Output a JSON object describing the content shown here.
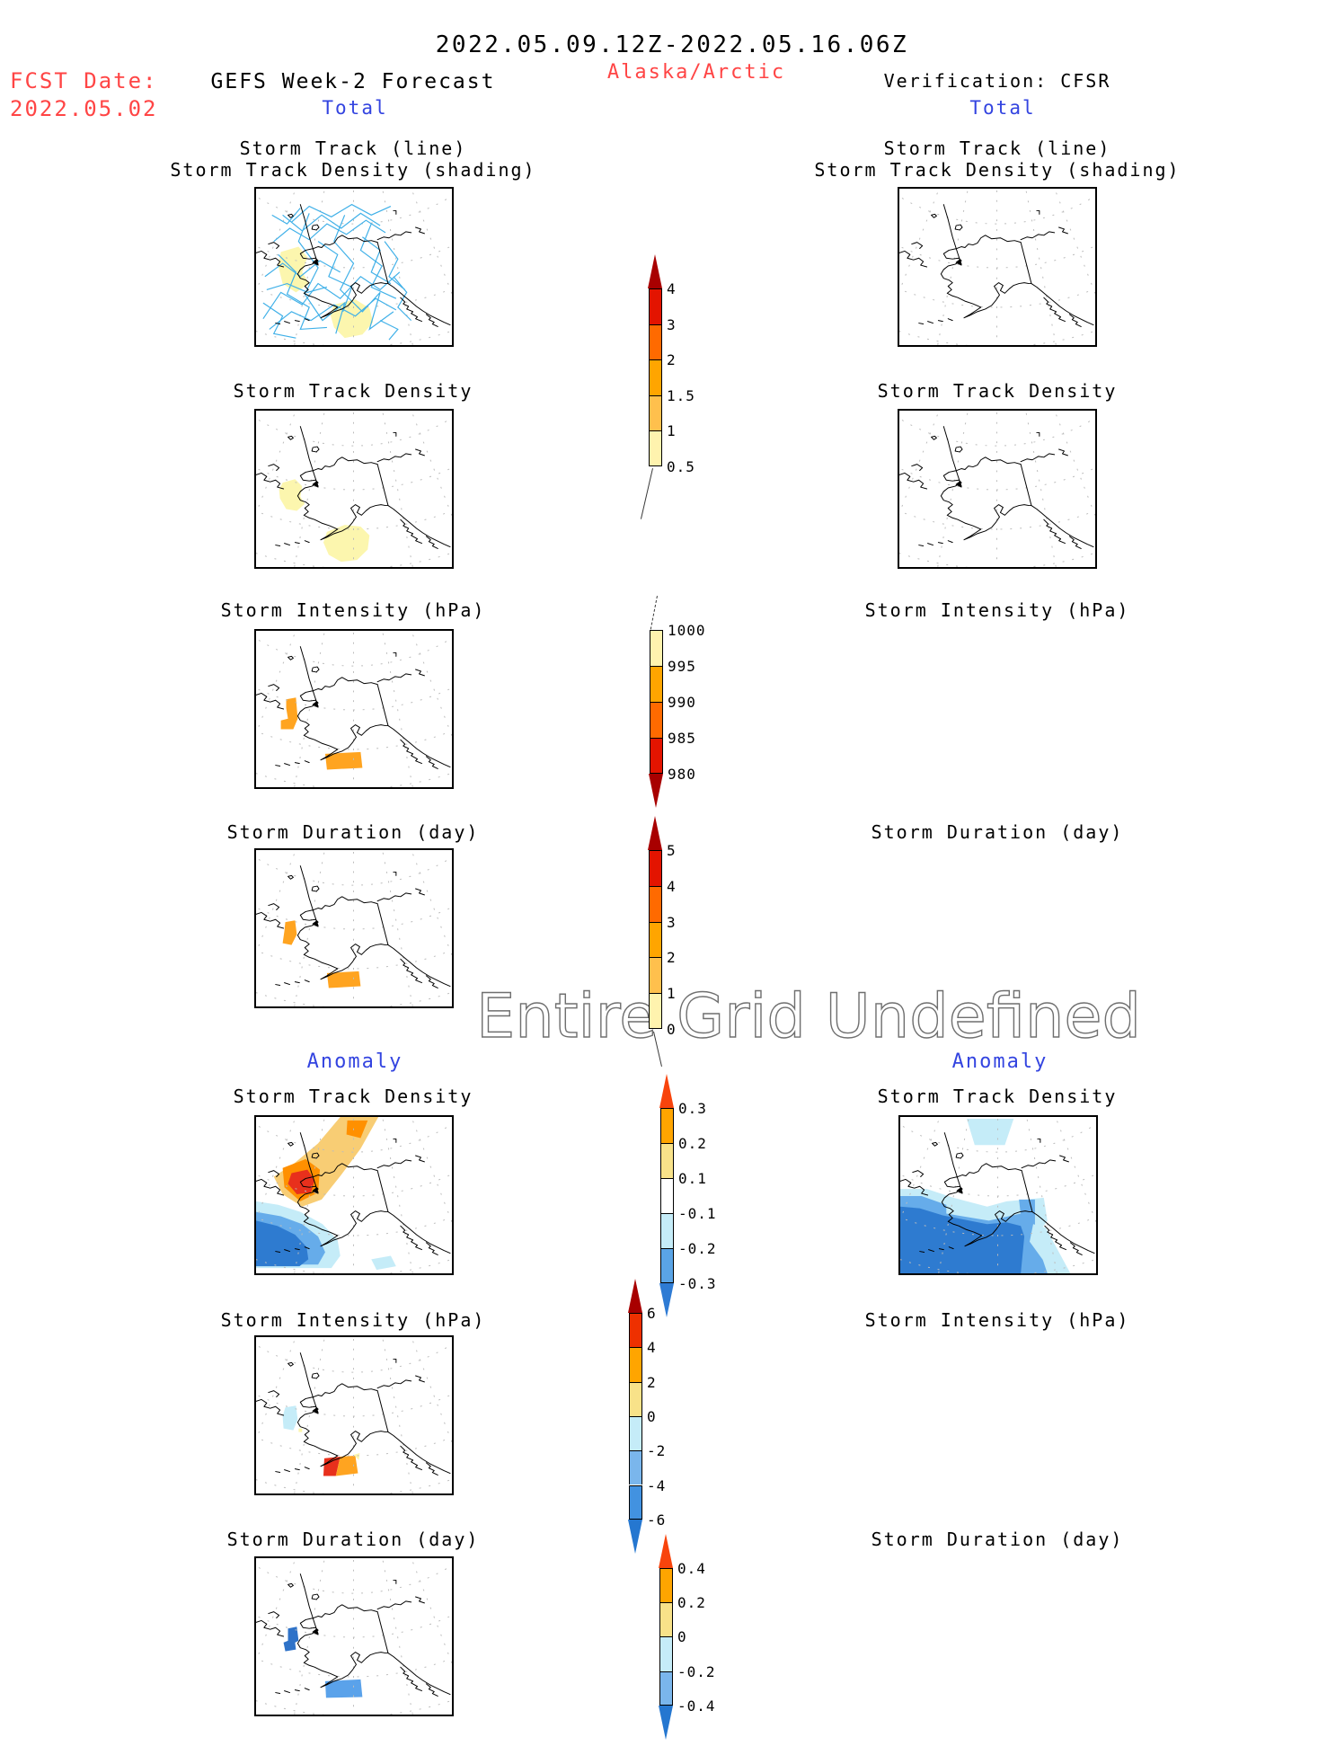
{
  "header": {
    "title": "2022.05.09.12Z-2022.05.16.06Z",
    "fcst_label": "FCST Date:",
    "fcst_date": "2022.05.02",
    "left_model": "GEFS Week-2 Forecast",
    "region": "Alaska/Arctic",
    "right_model": "Verification: CFSR",
    "left_section": "Total",
    "right_section": "Total"
  },
  "section_labels": {
    "left_anomaly": "Anomaly",
    "right_anomaly": "Anomaly"
  },
  "watermark": "Entire Grid Undefined",
  "colors": {
    "red_text": "#ff4545",
    "blue_text": "#3344e0",
    "track_blue": "#3fb0e8",
    "pale_yellow": "#fcf6ae",
    "orange": "#ffa420",
    "orange_deep": "#ff9000",
    "tan_band": "#f8cd74",
    "red_patch": "#e8301c",
    "cyan_light": "#c5ecf8",
    "blue_medium": "#66acea",
    "blue_dark": "#2e7bd0",
    "blue_patch": "#2e72c8",
    "blue_soft": "#5aa2ea",
    "watermark_gray": "#6f6f6f"
  },
  "chart_data": {
    "type": "heatmap",
    "figure": "GEFS Week-2 storm track forecast vs CFSR verification, Alaska/Arctic, valid 2022.05.09.12Z-2022.05.16.06Z; forecast issued 2022.05.02",
    "colorbars": {
      "track_density": {
        "tip_up": "#a80000",
        "tip_down": null,
        "labels": [
          "4",
          "3",
          "2",
          "1.5",
          "1",
          "0.5"
        ],
        "colors": [
          "#e31400",
          "#ff6a00",
          "#ffa500",
          "#ffc04d",
          "#fff3ae"
        ]
      },
      "intensity": {
        "tip_up": null,
        "tip_down": "#a80000",
        "labels": [
          "1000",
          "995",
          "990",
          "985",
          "980"
        ],
        "colors": [
          "#fff3ae",
          "#ffa500",
          "#ff6a00",
          "#e31400"
        ]
      },
      "duration": {
        "tip_up": "#a80000",
        "tip_down": null,
        "labels": [
          "5",
          "4",
          "3",
          "2",
          "1",
          "0"
        ],
        "colors": [
          "#e31400",
          "#ff6a00",
          "#ffa500",
          "#ffc04d",
          "#fff3ae"
        ]
      },
      "track_density_anomaly": {
        "tip_up": "#f8440c",
        "tip_down": "#2e7bd4",
        "labels": [
          "0.3",
          "0.2",
          "0.1",
          "-0.1",
          "-0.2",
          "-0.3"
        ],
        "colors": [
          "#ffa500",
          "#f8e289",
          "#ffffff",
          "#c5ecf8",
          "#5aa4e6"
        ]
      },
      "intensity_anomaly": {
        "tip_up": "#a80000",
        "tip_down": "#2577d0",
        "labels": [
          "6",
          "4",
          "2",
          "0",
          "-2",
          "-4",
          "-6"
        ],
        "colors": [
          "#ee3000",
          "#ffa500",
          "#f8e289",
          "#c5ecf8",
          "#7ab6ec",
          "#4292e0"
        ]
      },
      "duration_anomaly": {
        "tip_up": "#f8440c",
        "tip_down": "#2577d0",
        "labels": [
          "0.4",
          "0.2",
          "0",
          "-0.2",
          "-0.4"
        ],
        "colors": [
          "#ffa500",
          "#f8e289",
          "#c5ecf8",
          "#7ab6ec"
        ]
      }
    },
    "panels_left": [
      {
        "title": "Storm Track (line)",
        "title2": "Storm Track Density (shading)",
        "content": "blue storm-track lines criss-crossing Bering Sea / Gulf of Alaska with pale yellow density shading 0.5-1"
      },
      {
        "title": "Storm Track Density",
        "content": "pale yellow 0.5-1 patches over Bering Sea and Gulf of Alaska"
      },
      {
        "title": "Storm Intensity (hPa)",
        "content": "orange 990-995 hPa patches over Bering Sea and Gulf of Alaska"
      },
      {
        "title": "Storm Duration (day)",
        "content": "orange 2-3 day patches over Bering Sea and Gulf of Alaska"
      },
      {
        "title": "Storm Track Density",
        "content": "anomaly: +0.1..+0.3 band from Arctic toward Bering Strait with +0.3 core, -0.1..-0.3 region SW of Aleutians, small -0.1 patch south"
      },
      {
        "title": "Storm Intensity (hPa)",
        "content": "anomaly: 0..-2 hPa cyan patch Bering Sea; +2..+6 red/orange patch Gulf of Alaska"
      },
      {
        "title": "Storm Duration (day)",
        "content": "anomaly: about -0.4 blue patch Bering Sea; -0.2 light blue patch Gulf of Alaska"
      }
    ],
    "panels_right": [
      {
        "title": "Storm Track (line)",
        "title2": "Storm Track Density (shading)",
        "content": "empty map, no storm tracks"
      },
      {
        "title": "Storm Track Density",
        "content": "empty map"
      },
      {
        "title": "Storm Intensity (hPa)",
        "content": "entire grid undefined, no map drawn"
      },
      {
        "title": "Storm Duration (day)",
        "content": "entire grid undefined, no map drawn"
      },
      {
        "title": "Storm Track Density",
        "content": "anomaly: blocky -0.1..-0.3 blue region over Bering Sea / Gulf of Alaska, cyan patch near north edge"
      },
      {
        "title": "Storm Intensity (hPa)",
        "content": "entire grid undefined, no map drawn"
      },
      {
        "title": "Storm Duration (day)",
        "content": "entire grid undefined, no map drawn"
      }
    ]
  }
}
